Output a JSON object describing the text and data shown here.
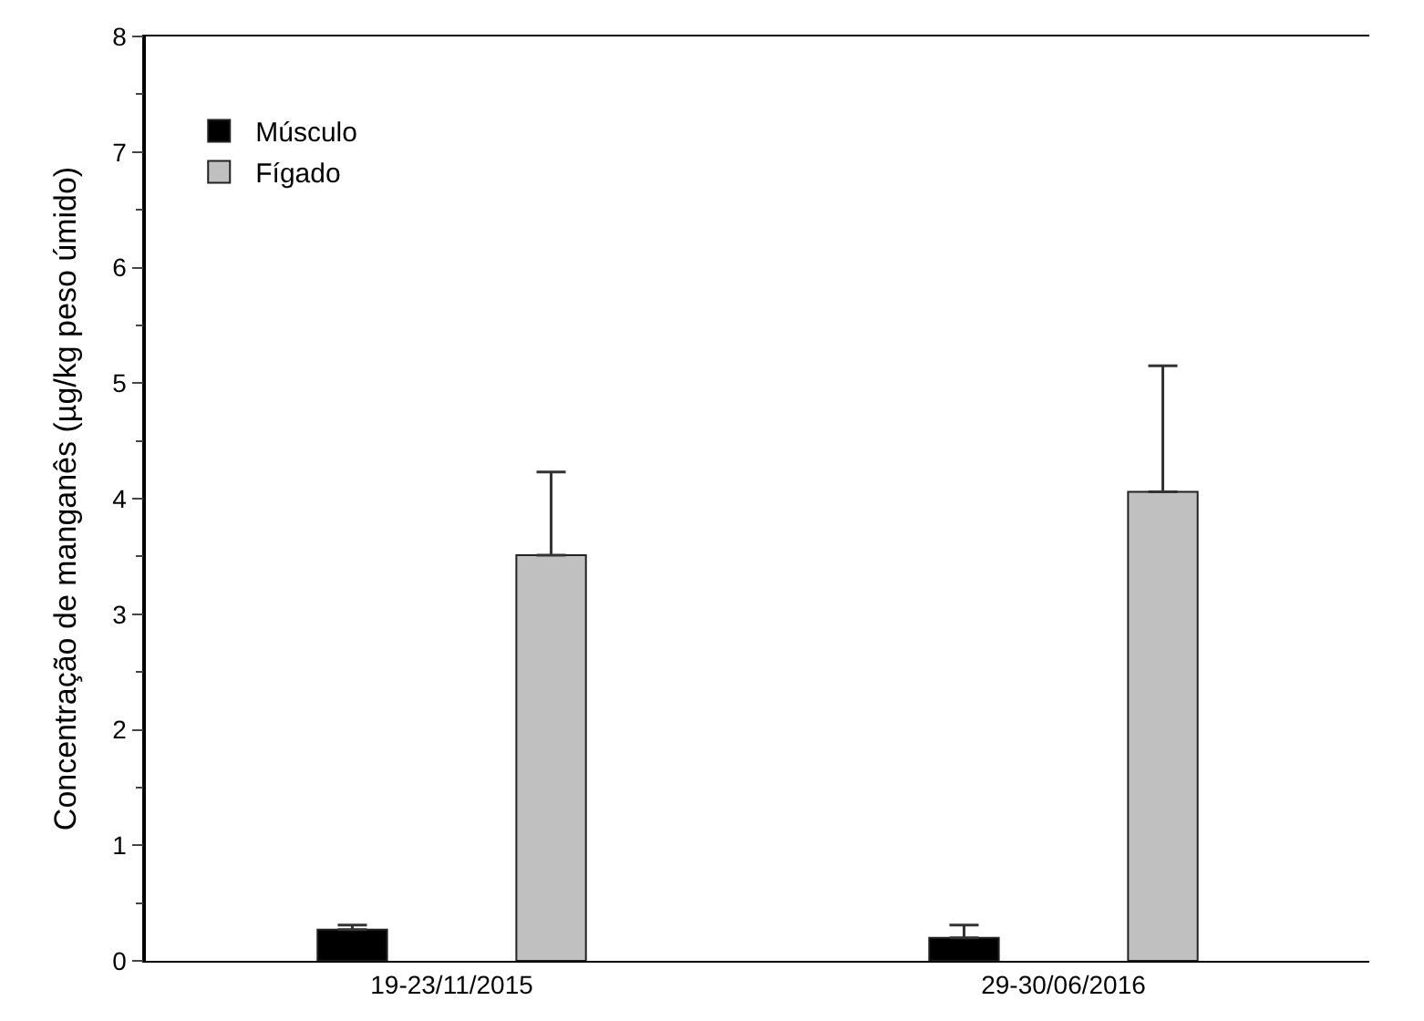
{
  "chart_data": {
    "type": "bar",
    "ylabel": "Concentração de manganês (µg/kg peso úmido)",
    "categories": [
      "19-23/11/2015",
      "29-30/06/2016"
    ],
    "series": [
      {
        "name": "Músculo",
        "color": "#000000",
        "values": [
          0.27,
          0.2
        ],
        "errors": [
          [
            0.27,
            0.31
          ],
          [
            0.2,
            0.31
          ]
        ]
      },
      {
        "name": "Fígado",
        "color": "#c0c0c0",
        "values": [
          3.51,
          4.06
        ],
        "errors": [
          [
            3.51,
            4.23
          ],
          [
            4.06,
            5.15
          ]
        ]
      }
    ],
    "ylim": [
      0,
      8
    ],
    "yticks": [
      0,
      1,
      2,
      3,
      4,
      5,
      6,
      7,
      8
    ],
    "legend": "top left"
  }
}
